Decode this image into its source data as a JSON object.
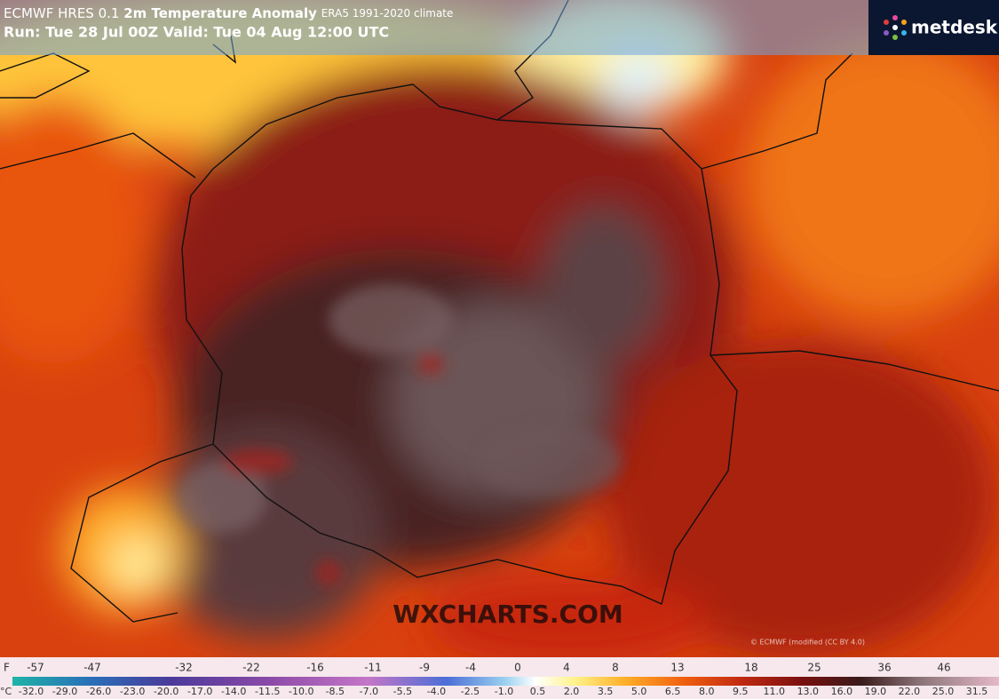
{
  "header": {
    "model": "ECMWF HRES 0.1",
    "parameter": "2m Temperature Anomaly",
    "climate": "ERA5 1991-2020 climate",
    "run": "Run: Tue 28 Jul 00Z Valid: Tue 04 Aug 12:00 UTC"
  },
  "logo": "metdesk",
  "watermark": "WXCHARTS.COM",
  "credit": "© ECMWF (modified (CC BY 4.0)",
  "legend": {
    "f_unit": "F",
    "f_labels": [
      "-57",
      "-47",
      "-32",
      "-22",
      "-16",
      "-11",
      "-9",
      "-4",
      "0",
      "4",
      "8",
      "13",
      "18",
      "25",
      "36",
      "46"
    ],
    "c_unit": "°C",
    "c_labels": [
      "-32.0",
      "-29.0",
      "-26.0",
      "-23.0",
      "-20.0",
      "-17.0",
      "-14.0",
      "-11.5",
      "-10.0",
      "-8.5",
      "-7.0",
      "-5.5",
      "-4.0",
      "-2.5",
      "-1.0",
      "0.5",
      "2.0",
      "3.5",
      "5.0",
      "6.5",
      "8.0",
      "9.5",
      "11.0",
      "13.0",
      "16.0",
      "19.0",
      "22.0",
      "25.0",
      "31.5"
    ]
  }
}
